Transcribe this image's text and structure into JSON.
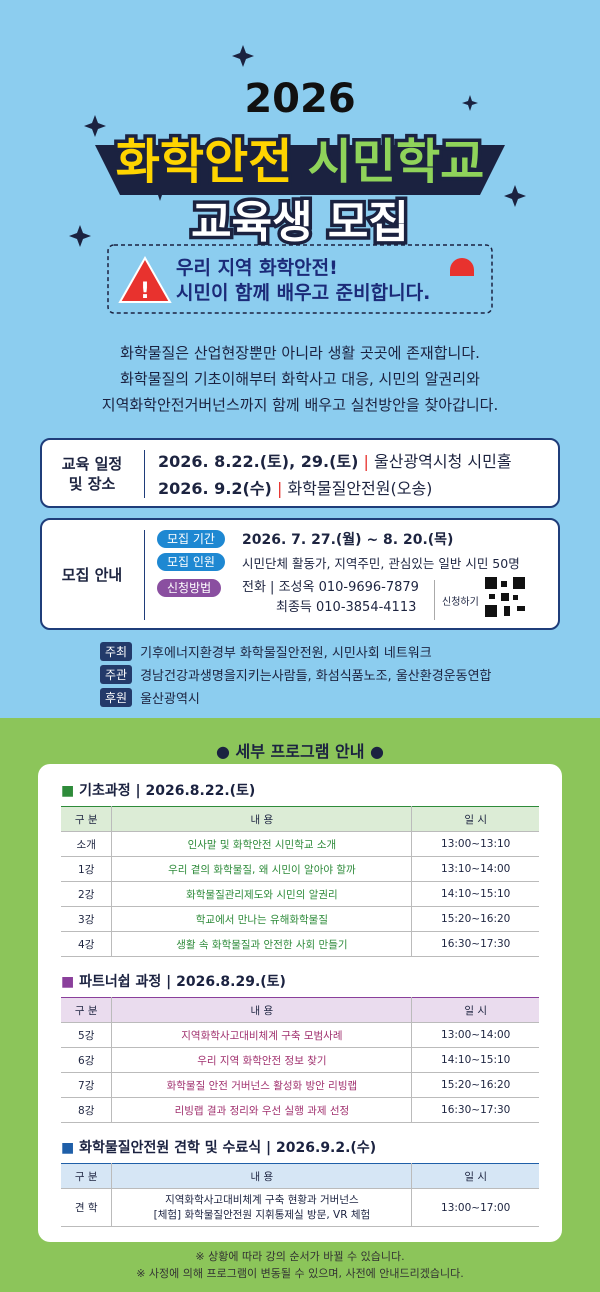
{
  "header": {
    "year": "2026",
    "title_part1": "화학안전",
    "title_part2": "시민학교",
    "subtitle": "교육생 모집",
    "slogan": [
      "우리 지역 화학안전!",
      "시민이 함께 배우고 준비합니다."
    ]
  },
  "intro": [
    "화학물질은 산업현장뿐만 아니라 생활 곳곳에 존재합니다.",
    "화학물질의 기초이해부터 화학사고 대응, 시민의 알권리와",
    "지역화학안전거버넌스까지 함께 배우고 실천방안을 찾아갑니다."
  ],
  "schedule": {
    "label": [
      "교육 일정",
      "및 장소"
    ],
    "lines": [
      {
        "date": "2026. 8.22.(토), 29.(토)",
        "place": "울산광역시청 시민홀"
      },
      {
        "date": "2026. 9.2(수)",
        "place": "화학물질안전원(오송)"
      }
    ]
  },
  "recruit": {
    "label": "모집 안내",
    "period": {
      "tag": "모집 기간",
      "text": "2026. 7. 27.(월) ~ 8. 20.(목)"
    },
    "capacity": {
      "tag": "모집 인원",
      "text": "시민단체 활동가, 지역주민, 관심있는 일반 시민 50명"
    },
    "apply": {
      "tag": "신청방법",
      "contacts": [
        "전화 | 조성옥 010-9696-7879",
        "최종득 010-3854-4113"
      ],
      "button": "신청하기"
    }
  },
  "organizers": [
    {
      "role": "주최",
      "names": "기후에너지환경부 화학물질안전원, 시민사회 네트워크"
    },
    {
      "role": "주관",
      "names": "경남건강과생명을지키는사람들, 화섬식품노조, 울산환경운동연합"
    },
    {
      "role": "후원",
      "names": "울산광역시"
    }
  ],
  "program": {
    "heading": "세부 프로그램 안내",
    "sections": [
      {
        "title": "기초과정 | 2026.8.22.(토)",
        "columns": [
          "구 분",
          "내 용",
          "일 시"
        ],
        "rows": [
          [
            "소개",
            "인사말 및 화학안전 시민학교 소개",
            "13:00~13:10"
          ],
          [
            "1강",
            "우리 곁의 화학물질, 왜 시민이 알아야 할까",
            "13:10~14:00"
          ],
          [
            "2강",
            "화학물질관리제도와 시민의 알권리",
            "14:10~15:10"
          ],
          [
            "3강",
            "학교에서 만나는 유해화학물질",
            "15:20~16:20"
          ],
          [
            "4강",
            "생활 속 화학물질과 안전한 사회 만들기",
            "16:30~17:30"
          ]
        ]
      },
      {
        "title": "파트너쉽 과정 | 2026.8.29.(토)",
        "columns": [
          "구 분",
          "내 용",
          "일 시"
        ],
        "rows": [
          [
            "5강",
            "지역화학사고대비체계 구축 모범사례",
            "13:00~14:00"
          ],
          [
            "6강",
            "우리 지역 화학안전 정보 찾기",
            "14:10~15:10"
          ],
          [
            "7강",
            "화학물질 안전 거버넌스 활성화 방안 리빙랩",
            "15:20~16:20"
          ],
          [
            "8강",
            "리빙랩 결과 정리와 우선 실행 과제 선정",
            "16:30~17:30"
          ]
        ]
      },
      {
        "title": "화학물질안전원 견학 및 수료식 | 2026.9.2.(수)",
        "columns": [
          "구 분",
          "내 용",
          "일 시"
        ],
        "rows": [
          [
            "견 학",
            [
              "지역화학사고대비체계 구축 현황과 거버넌스",
              "[체험] 화학물질안전원 지휘통제실 방문, VR 체험"
            ],
            "13:00~17:00"
          ]
        ]
      }
    ]
  },
  "notes": [
    "※ 상황에 따라 강의 순서가 바뀔 수 있습니다.",
    "※ 사정에 의해 프로그램이 변동될 수 있으며, 사전에 안내드리겠습니다."
  ]
}
